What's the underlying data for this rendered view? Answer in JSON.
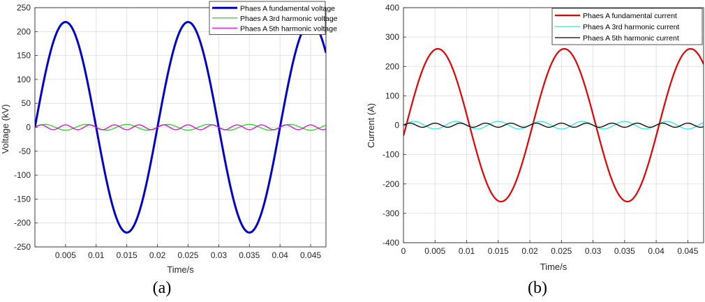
{
  "chart_data": [
    {
      "type": "line",
      "caption": "(a)",
      "xlabel": "Time/s",
      "ylabel": "Voltage (kV)",
      "xlim": [
        0,
        0.0475
      ],
      "ylim": [
        -250,
        250
      ],
      "xticks": [
        0.005,
        0.01,
        0.015,
        0.02,
        0.025,
        0.03,
        0.035,
        0.04,
        0.045
      ],
      "xticklabels": [
        "0.005",
        "0.01",
        "0.015",
        "0.02",
        "0.025",
        "0.03",
        "0.035",
        "0.04",
        "0.045"
      ],
      "yticks": [
        -250,
        -200,
        -150,
        -100,
        -50,
        0,
        50,
        100,
        150,
        200,
        250
      ],
      "yticklabels": [
        "-250",
        "-200",
        "-150",
        "-100",
        "-50",
        "0",
        "50",
        "100",
        "150",
        "200",
        "250"
      ],
      "grid": true,
      "legend": "top-right",
      "series": [
        {
          "name": "Phaes A fundamental voltage",
          "color": "#0000cc",
          "width": 3,
          "amplitude": 220,
          "harmonic": 1,
          "phase_deg": 0
        },
        {
          "name": "Phaes A 3rd harmonic voltage",
          "color": "#33cc33",
          "width": 1.3,
          "amplitude": 6,
          "harmonic": 3,
          "phase_deg": 0
        },
        {
          "name": "Phaes A  5th harmonic voltage",
          "color": "#e600e6",
          "width": 1.3,
          "amplitude": 5,
          "harmonic": 5,
          "phase_deg": 0
        }
      ]
    },
    {
      "type": "line",
      "caption": "(b)",
      "xlabel": "Time/s",
      "ylabel": "Current (A)",
      "xlim": [
        0,
        0.0475
      ],
      "ylim": [
        -400,
        400
      ],
      "xticks": [
        0,
        0.005,
        0.01,
        0.015,
        0.02,
        0.025,
        0.03,
        0.035,
        0.04,
        0.045
      ],
      "xticklabels": [
        "0",
        "0.005",
        "0.01",
        "0.015",
        "0.02",
        "0.025",
        "0.03",
        "0.035",
        "0.04",
        "0.045"
      ],
      "yticks": [
        -400,
        -300,
        -200,
        -100,
        0,
        100,
        200,
        300,
        400
      ],
      "yticklabels": [
        "-400",
        "-300",
        "-200",
        "-100",
        "0",
        "100",
        "200",
        "300",
        "400"
      ],
      "grid": true,
      "legend": "top-right",
      "series": [
        {
          "name": "Phaes A fundamental current",
          "color": "#e60000",
          "width": 2.2,
          "amplitude": 260,
          "harmonic": 1,
          "phase_deg": -8
        },
        {
          "name": "Phaes A 3rd harmonic current",
          "color": "#33e6e6",
          "width": 1.3,
          "amplitude": 13,
          "harmonic": 3,
          "phase_deg": 0
        },
        {
          "name": "Phaes A  5th harmonic current",
          "color": "#000000",
          "width": 1.3,
          "amplitude": 7,
          "harmonic": 5,
          "phase_deg": 0
        }
      ]
    }
  ]
}
